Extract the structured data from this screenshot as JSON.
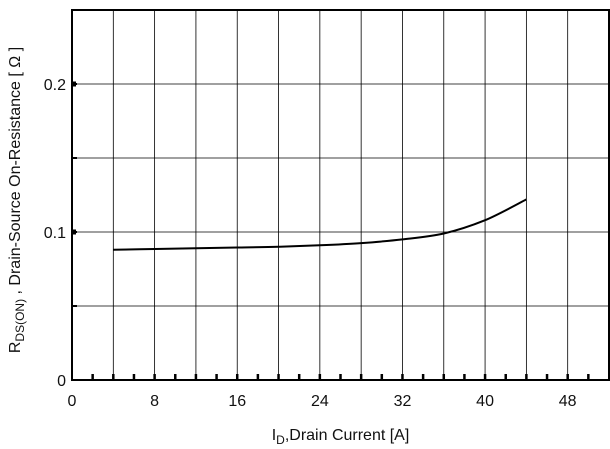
{
  "chart_data": {
    "type": "line",
    "xlabel": {
      "main": "I",
      "sub": "D",
      "rest": ",Drain Current [A]"
    },
    "ylabel": {
      "main": "R",
      "sub": "DS(ON)",
      "rest": " , Drain-Source On-Resistance [ Ω ]"
    },
    "xlim": [
      0,
      52
    ],
    "ylim": [
      0,
      0.25
    ],
    "x_ticks": [
      0,
      8,
      16,
      24,
      32,
      40,
      48
    ],
    "x_tick_labels": [
      "0",
      "8",
      "16",
      "24",
      "32",
      "40",
      "48"
    ],
    "y_ticks": [
      0,
      0.1,
      0.2
    ],
    "y_tick_labels": [
      "0",
      "0.1",
      "0.2"
    ],
    "grid": true,
    "x_grid_step": 4,
    "y_grid_step": 0.05,
    "series": [
      {
        "color": "#000000",
        "x": [
          4,
          8,
          12,
          16,
          20,
          24,
          28,
          32,
          36,
          40,
          44
        ],
        "y": [
          0.088,
          0.0885,
          0.089,
          0.0895,
          0.09,
          0.091,
          0.0925,
          0.095,
          0.099,
          0.108,
          0.122
        ]
      }
    ]
  }
}
